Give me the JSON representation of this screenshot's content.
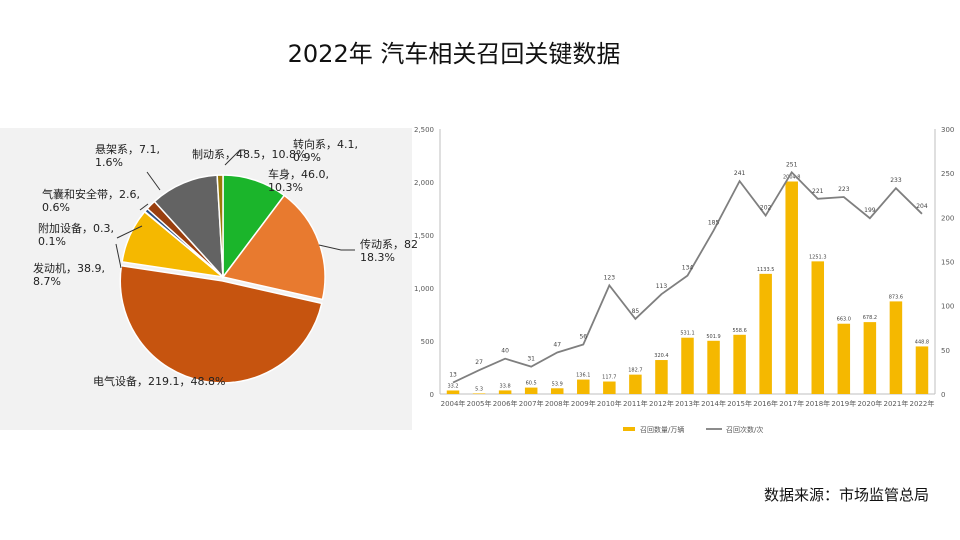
{
  "title": "2022年 汽车相关召回关键数据",
  "source": "数据来源：市场监管总局",
  "chart_data": [
    {
      "type": "pie",
      "slices": [
        {
          "name": "车身",
          "value": 46.0,
          "percent": "10.3%",
          "color": "#1bb52b"
        },
        {
          "name": "传动系",
          "value": 82,
          "percent": "18.3%",
          "color": "#e87a2f"
        },
        {
          "name": "电气设备",
          "value": 219.1,
          "percent": "48.8%",
          "color": "#c6540f"
        },
        {
          "name": "发动机",
          "value": 38.9,
          "percent": "8.7%",
          "color": "#f5b800"
        },
        {
          "name": "附加设备",
          "value": 0.3,
          "percent": "0.1%",
          "color": "#3d6fb8"
        },
        {
          "name": "气囊和安全带",
          "value": 2.6,
          "percent": "0.6%",
          "color": "#2b4f82"
        },
        {
          "name": "悬架系",
          "value": 7.1,
          "percent": "1.6%",
          "color": "#9a3f0e"
        },
        {
          "name": "制动系",
          "value": 48.5,
          "percent": "10.8%",
          "color": "#636363"
        },
        {
          "name": "转向系",
          "value": 4.1,
          "percent": "0.9%",
          "color": "#9a7a08"
        }
      ],
      "labels": [
        {
          "line1": "车身，46.0,",
          "line2": "10.3%"
        },
        {
          "line1": "传动系，82",
          "line2": "18.3%"
        },
        {
          "line1": "电气设备，219.1，48.8%",
          "line2": ""
        },
        {
          "line1": "发动机，38.9,",
          "line2": "8.7%"
        },
        {
          "line1": "附加设备，0.3,",
          "line2": "0.1%"
        },
        {
          "line1": "气囊和安全带，2.6,",
          "line2": "0.6%"
        },
        {
          "line1": "悬架系，7.1,",
          "line2": "1.6%"
        },
        {
          "line1": "制动系，48.5，10.8%",
          "line2": ""
        },
        {
          "line1": "转向系，4.1,",
          "line2": "0.9%"
        }
      ]
    },
    {
      "type": "bar",
      "categories": [
        "2004年",
        "2005年",
        "2006年",
        "2007年",
        "2008年",
        "2009年",
        "2010年",
        "2011年",
        "2012年",
        "2013年",
        "2014年",
        "2015年",
        "2016年",
        "2017年",
        "2018年",
        "2019年",
        "2020年",
        "2021年",
        "2022年"
      ],
      "series": [
        {
          "name": "召回数量/万辆",
          "type": "bar",
          "color": "#f5b800",
          "values": [
            33.2,
            5.3,
            33.8,
            60.5,
            53.9,
            136.1,
            117.7,
            182.7,
            320.4,
            531.1,
            501.9,
            558.6,
            1133.5,
            2004.8,
            1251.3,
            663.0,
            678.2,
            873.6,
            448.8
          ]
        },
        {
          "name": "召回次数/次",
          "type": "line",
          "color": "#7f7f7f",
          "values": [
            13,
            27,
            40,
            31,
            47,
            56,
            123,
            85,
            113,
            134,
            185,
            241,
            202,
            251,
            221,
            223,
            199,
            233,
            204
          ]
        }
      ],
      "bar_labels": [
        "33.2",
        "5.3",
        "33.8",
        "60.5",
        "53.9",
        "136.1",
        "117.7",
        "182.7",
        "320.4",
        "531.1",
        "501.9",
        "558.6",
        "1133.5",
        "2004.8",
        "1251.3",
        "663.0",
        "678.2",
        "873.6",
        "448.8"
      ],
      "line_labels": [
        "13",
        "27",
        "40",
        "31",
        "47",
        "56",
        "123",
        "85",
        "113",
        "134",
        "185",
        "241",
        "202",
        "251",
        "221",
        "223",
        "199",
        "233",
        "204"
      ],
      "y_left": {
        "ticks": [
          "0",
          "500",
          "1,000",
          "1,500",
          "2,000",
          "2,500"
        ],
        "ylim": [
          0,
          2500
        ]
      },
      "y_right": {
        "ticks": [
          "0",
          "50",
          "100",
          "150",
          "200",
          "250",
          "300"
        ],
        "ylim": [
          0,
          300
        ]
      },
      "legend": {
        "position": "bottom",
        "items": [
          "召回数量/万辆",
          "召回次数/次"
        ]
      },
      "grid": false
    }
  ]
}
